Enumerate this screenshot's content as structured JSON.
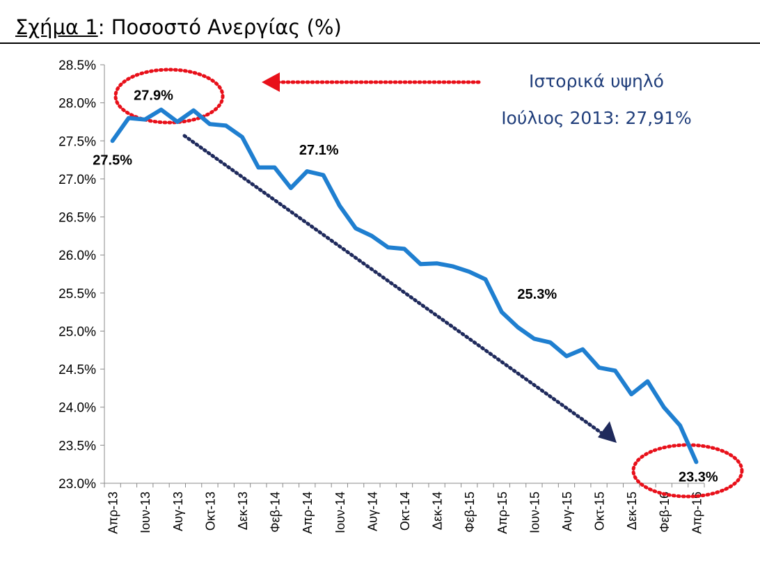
{
  "title": {
    "prefix": "Σχήμα 1",
    "text": ": Ποσοστό Ανεργίας (%)"
  },
  "chart_data": {
    "type": "line",
    "title": "Ποσοστό Ανεργίας (%)",
    "xlabel": "",
    "ylabel": "",
    "ylim": [
      23.0,
      28.5
    ],
    "y_ticks": [
      "28.5%",
      "28.0%",
      "27.5%",
      "27.0%",
      "26.5%",
      "26.0%",
      "25.5%",
      "25.0%",
      "24.5%",
      "24.0%",
      "23.5%",
      "23.0%"
    ],
    "grid": false,
    "x": [
      "Απρ-13",
      "Μαϊ-13",
      "Ιουν-13",
      "Ιουλ-13",
      "Αυγ-13",
      "Σεπ-13",
      "Οκτ-13",
      "Νοε-13",
      "Δεκ-13",
      "Ιαν-14",
      "Φεβ-14",
      "Μαρ-14",
      "Απρ-14",
      "Μαϊ-14",
      "Ιουν-14",
      "Ιουλ-14",
      "Αυγ-14",
      "Σεπ-14",
      "Οκτ-14",
      "Νοε-14",
      "Δεκ-14",
      "Ιαν-15",
      "Φεβ-15",
      "Μαρ-15",
      "Απρ-15",
      "Μαϊ-15",
      "Ιουν-15",
      "Ιουλ-15",
      "Αυγ-15",
      "Σεπ-15",
      "Οκτ-15",
      "Νοε-15",
      "Δεκ-15",
      "Ιαν-16",
      "Φεβ-16",
      "Μαρ-16",
      "Απρ-16"
    ],
    "x_tick_labels": [
      "Απρ-13",
      "Ιουν-13",
      "Αυγ-13",
      "Οκτ-13",
      "Δεκ-13",
      "Φεβ-14",
      "Απρ-14",
      "Ιουν-14",
      "Αυγ-14",
      "Οκτ-14",
      "Δεκ-14",
      "Φεβ-15",
      "Απρ-15",
      "Ιουν-15",
      "Αυγ-15",
      "Οκτ-15",
      "Δεκ-15",
      "Φεβ-16",
      "Απρ-16"
    ],
    "series": [
      {
        "color": "#1f7fd0",
        "values": [
          27.5,
          27.8,
          27.78,
          27.91,
          27.75,
          27.9,
          27.72,
          27.7,
          27.55,
          27.15,
          27.15,
          26.88,
          27.1,
          27.05,
          26.65,
          26.35,
          26.25,
          26.1,
          26.08,
          25.88,
          25.89,
          25.85,
          25.78,
          25.68,
          25.25,
          25.05,
          24.9,
          24.85,
          24.67,
          24.76,
          24.52,
          24.48,
          24.17,
          24.34,
          24.0,
          23.76,
          23.28
        ]
      }
    ],
    "data_labels": [
      {
        "text": "27.9%",
        "index": 3
      },
      {
        "text": "27.5%",
        "index": 0
      },
      {
        "text": "27.1%",
        "index": 12
      },
      {
        "text": "25.3%",
        "index": 24
      },
      {
        "text": "23.3%",
        "index": 36
      }
    ],
    "annotations": {
      "note_line1": "Ιστορικά υψηλό",
      "note_line2": "Ιούλιος 2013: 27,91%",
      "note_color": "#1f3d7a",
      "highlight_color": "#e8101a",
      "trend_arrow_color": "#1f2a5c"
    }
  }
}
